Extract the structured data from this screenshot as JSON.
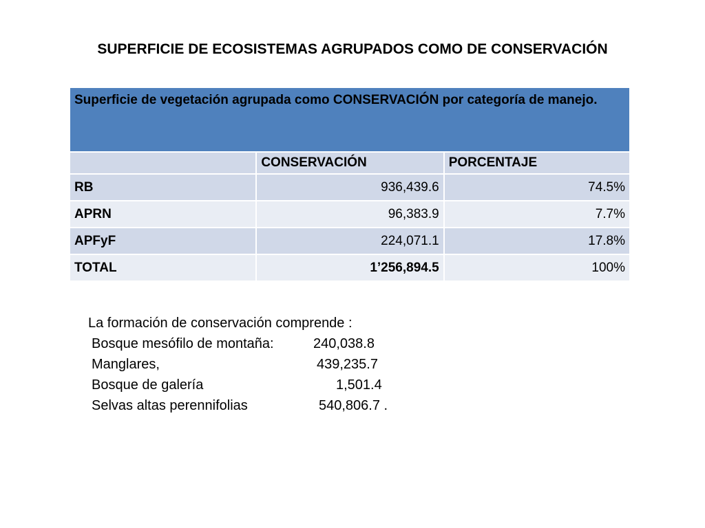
{
  "slide": {
    "title": "SUPERFICIE DE ECOSISTEMAS AGRUPADOS COMO DE CONSERVACIÓN"
  },
  "table": {
    "caption": "Superficie de vegetación agrupada como CONSERVACIÓN por categoría de manejo.",
    "headers": [
      "",
      "CONSERVACIÓN",
      "PORCENTAJE"
    ],
    "rows": [
      {
        "label": "RB",
        "conservacion": "936,439.6",
        "porcentaje": "74.5%"
      },
      {
        "label": "APRN",
        "conservacion": "96,383.9",
        "porcentaje": "7.7%"
      },
      {
        "label": "APFyF",
        "conservacion": "224,071.1",
        "porcentaje": "17.8%"
      },
      {
        "label": "TOTAL",
        "conservacion": "1’256,894.5",
        "porcentaje": "100%"
      }
    ]
  },
  "notes": {
    "intro": "La formación de conservación comprende :",
    "items": [
      {
        "label": "Bosque mesófilo de montaña:",
        "value": "240,038.8"
      },
      {
        "label": "Manglares,",
        "value": "439,235.7"
      },
      {
        "label": "Bosque de galería",
        "value": "1,501.4"
      },
      {
        "label": "Selvas altas perennifolias",
        "value": "540,806.7 ."
      }
    ]
  },
  "colors": {
    "caption_bg": "#4f81bd",
    "row_dark": "#d0d8e8",
    "row_light": "#e9edf4"
  }
}
